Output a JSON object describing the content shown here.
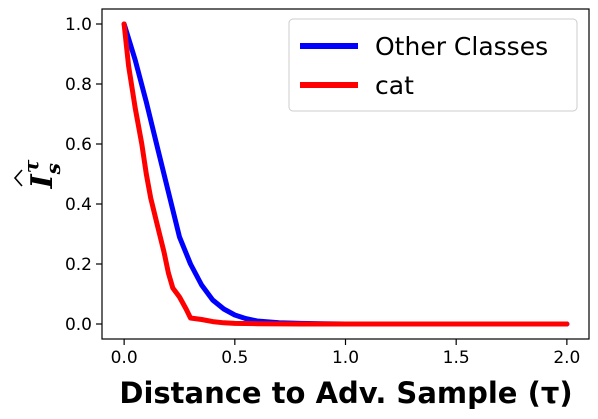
{
  "chart_data": {
    "type": "line",
    "xlabel": "Distance to Adv. Sample (τ)",
    "ylabel_base": "I",
    "ylabel_sup": "τ",
    "ylabel_sub": "s",
    "xlim": [
      -0.1,
      2.1
    ],
    "ylim": [
      -0.05,
      1.05
    ],
    "xticks": [
      "0.0",
      "0.5",
      "1.0",
      "1.5",
      "2.0"
    ],
    "yticks": [
      "0.0",
      "0.2",
      "0.4",
      "0.6",
      "0.8",
      "1.0"
    ],
    "legend_position": "top-right",
    "series": [
      {
        "name": "Other Classes",
        "color": "#0000ff",
        "x": [
          0.0,
          0.05,
          0.1,
          0.15,
          0.2,
          0.25,
          0.3,
          0.35,
          0.4,
          0.45,
          0.5,
          0.55,
          0.6,
          0.7,
          0.8,
          0.9,
          1.0,
          1.5,
          2.0
        ],
        "y": [
          1.0,
          0.88,
          0.74,
          0.59,
          0.44,
          0.29,
          0.2,
          0.13,
          0.08,
          0.05,
          0.03,
          0.018,
          0.01,
          0.004,
          0.002,
          0.001,
          0.0,
          0.0,
          0.0
        ]
      },
      {
        "name": "cat",
        "color": "#ff0000",
        "x": [
          0.0,
          0.02,
          0.05,
          0.08,
          0.1,
          0.12,
          0.15,
          0.18,
          0.2,
          0.22,
          0.25,
          0.28,
          0.3,
          0.35,
          0.4,
          0.45,
          0.5,
          0.6,
          0.8,
          1.0,
          1.5,
          2.0
        ],
        "y": [
          1.0,
          0.86,
          0.72,
          0.6,
          0.5,
          0.42,
          0.33,
          0.24,
          0.17,
          0.12,
          0.09,
          0.05,
          0.02,
          0.015,
          0.008,
          0.004,
          0.002,
          0.001,
          0.0,
          0.0,
          0.0,
          0.0
        ]
      }
    ]
  }
}
